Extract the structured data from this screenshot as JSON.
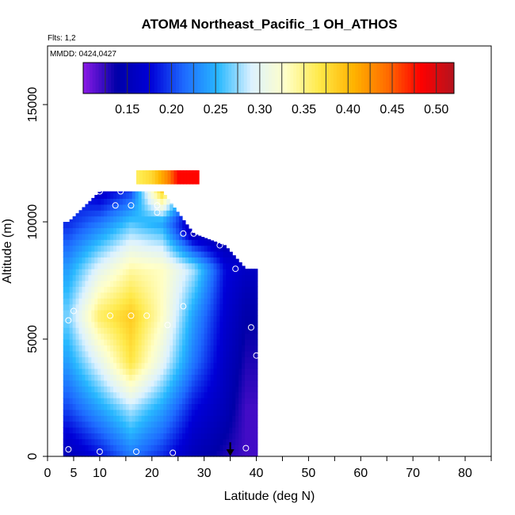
{
  "chart_data": {
    "type": "heatmap",
    "title": "ATOM4 Northeast_Pacific_1 OH_ATHOS",
    "flights_label": "Flts: 1,2",
    "dates_label": "MMDD: 0424,0427",
    "xlabel": "Latitude (deg N)",
    "ylabel": "Altitude (m)",
    "xlim": [
      0,
      85
    ],
    "ylim": [
      0,
      17500
    ],
    "x_ticks": [
      0,
      5,
      10,
      20,
      30,
      40,
      50,
      60,
      70,
      80
    ],
    "y_ticks": [
      0,
      5000,
      10000,
      15000
    ],
    "grid": false,
    "colorbar": {
      "range": [
        0.1,
        0.52
      ],
      "ticks": [
        0.15,
        0.2,
        0.25,
        0.3,
        0.35,
        0.4,
        0.45,
        0.5
      ],
      "tick_labels": [
        "0.15",
        "0.20",
        "0.25",
        "0.30",
        "0.35",
        "0.40",
        "0.45",
        "0.50"
      ],
      "palette": [
        "#8B1AE6",
        "#0000A8",
        "#0000D8",
        "#1E6BFF",
        "#28B8FF",
        "#DDF2FF",
        "#FFFFC8",
        "#FFE94A",
        "#FFB400",
        "#FF6E00",
        "#FF0000",
        "#B4141E"
      ]
    },
    "latitude_band": [
      3,
      40
    ],
    "profiles": [
      {
        "lat": 4,
        "alt": [
          0,
          2000,
          4000,
          6000,
          8000,
          10000
        ],
        "oh": [
          0.15,
          0.2,
          0.24,
          0.27,
          0.24,
          0.19
        ]
      },
      {
        "lat": 10,
        "alt": [
          0,
          2000,
          4000,
          6000,
          8000,
          10000,
          11300
        ],
        "oh": [
          0.18,
          0.24,
          0.3,
          0.36,
          0.3,
          0.22,
          0.16
        ]
      },
      {
        "lat": 16,
        "alt": [
          0,
          2000,
          4000,
          6000,
          8000,
          10000,
          11300
        ],
        "oh": [
          0.22,
          0.28,
          0.37,
          0.39,
          0.34,
          0.26,
          0.2
        ]
      },
      {
        "lat": 22,
        "alt": [
          0,
          2000,
          4000,
          6000,
          8000,
          10000,
          11300
        ],
        "oh": [
          0.19,
          0.24,
          0.3,
          0.33,
          0.33,
          0.24,
          0.39
        ]
      },
      {
        "lat": 28,
        "alt": [
          0,
          2000,
          4000,
          6000,
          8000,
          9500
        ],
        "oh": [
          0.15,
          0.18,
          0.22,
          0.24,
          0.28,
          0.15
        ]
      },
      {
        "lat": 34,
        "alt": [
          0,
          2000,
          4000,
          6000,
          8000,
          9000
        ],
        "oh": [
          0.13,
          0.15,
          0.16,
          0.17,
          0.18,
          0.15
        ]
      },
      {
        "lat": 38,
        "alt": [
          0,
          2000,
          4000,
          6000,
          8000
        ],
        "oh": [
          0.12,
          0.12,
          0.13,
          0.14,
          0.16
        ]
      }
    ],
    "high_altitude_layer": [
      {
        "lat": 17,
        "alt": 11900,
        "oh": 0.36
      },
      {
        "lat": 20,
        "alt": 11900,
        "oh": 0.38
      },
      {
        "lat": 23,
        "alt": 11900,
        "oh": 0.43
      },
      {
        "lat": 25,
        "alt": 11900,
        "oh": 0.48
      }
    ],
    "observation_points": [
      {
        "lat": 6,
        "alt": 11300
      },
      {
        "lat": 7,
        "alt": 11300
      },
      {
        "lat": 8,
        "alt": 11300
      },
      {
        "lat": 10,
        "alt": 11300
      },
      {
        "lat": 14,
        "alt": 11300
      },
      {
        "lat": 13,
        "alt": 10700
      },
      {
        "lat": 16,
        "alt": 10700
      },
      {
        "lat": 21,
        "alt": 10700
      },
      {
        "lat": 21,
        "alt": 10400
      },
      {
        "lat": 26,
        "alt": 9500
      },
      {
        "lat": 28,
        "alt": 9500
      },
      {
        "lat": 31,
        "alt": 9500
      },
      {
        "lat": 33,
        "alt": 9000
      },
      {
        "lat": 37,
        "alt": 8700
      },
      {
        "lat": 39,
        "alt": 8400
      },
      {
        "lat": 36,
        "alt": 8000
      },
      {
        "lat": 5,
        "alt": 6200
      },
      {
        "lat": 26,
        "alt": 6400
      },
      {
        "lat": 4,
        "alt": 5800
      },
      {
        "lat": 12,
        "alt": 6000
      },
      {
        "lat": 16,
        "alt": 6000
      },
      {
        "lat": 19,
        "alt": 6000
      },
      {
        "lat": 23,
        "alt": 5600
      },
      {
        "lat": 39,
        "alt": 5500
      },
      {
        "lat": 40,
        "alt": 4300
      },
      {
        "lat": 4,
        "alt": 300
      },
      {
        "lat": 10,
        "alt": 200
      },
      {
        "lat": 17,
        "alt": 200
      },
      {
        "lat": 24,
        "alt": 150
      },
      {
        "lat": 38,
        "alt": 350
      }
    ],
    "marker_arrow_lat": 35
  }
}
